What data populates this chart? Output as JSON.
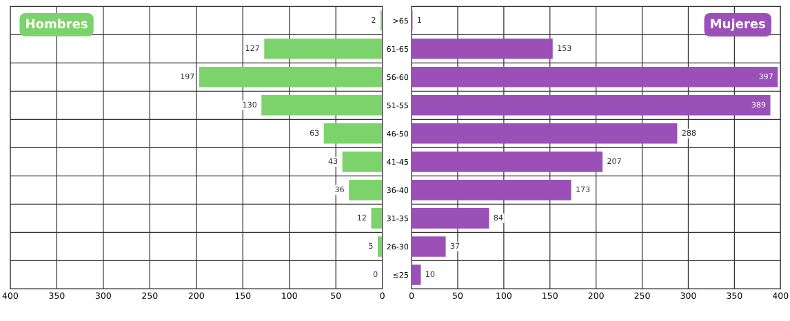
{
  "chart_data": [
    {
      "type": "bar",
      "orientation": "horizontal",
      "categories": [
        null,
        null,
        null,
        null,
        null,
        null,
        null,
        null,
        null,
        null
      ],
      "series": [
        {
          "name": "Hombres",
          "color": "#7dd36b",
          "values": [
            2,
            127,
            197,
            130,
            63,
            43,
            36,
            12,
            5,
            0
          ]
        }
      ],
      "xlim": [
        400,
        0
      ],
      "xticks": [
        400,
        350,
        300,
        250,
        200,
        150,
        100,
        50,
        0
      ],
      "grid": true,
      "data_labels": true
    },
    {
      "type": "bar",
      "orientation": "horizontal",
      "categories": [
        ">65",
        "61-65",
        "56-60",
        "51-55",
        "46-50",
        "41-45",
        "36-40",
        "31-35",
        "26-30",
        "≤25"
      ],
      "series": [
        {
          "name": "Mujeres",
          "color": "#9b50b8",
          "values": [
            1,
            153,
            397,
            389,
            288,
            207,
            173,
            84,
            37,
            10
          ]
        }
      ],
      "xlim": [
        0,
        400
      ],
      "xticks": [
        0,
        50,
        100,
        150,
        200,
        250,
        300,
        350,
        400
      ],
      "grid": true,
      "data_labels": true
    }
  ]
}
